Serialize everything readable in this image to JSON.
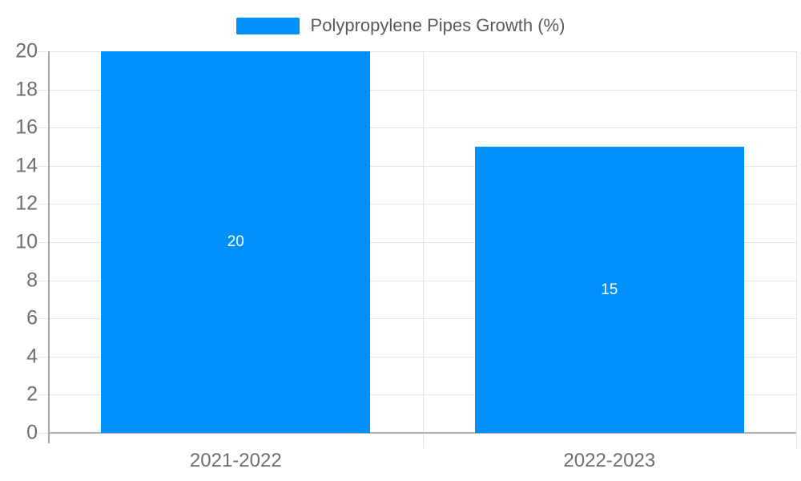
{
  "legend": {
    "label": "Polypropylene Pipes Growth (%)"
  },
  "chart_data": {
    "type": "bar",
    "title": "Polypropylene Pipes Growth (%)",
    "categories": [
      "2021-2022",
      "2022-2023"
    ],
    "series": [
      {
        "name": "Polypropylene Pipes Growth (%)",
        "values": [
          20,
          15
        ]
      }
    ],
    "data_labels": [
      "20",
      "15"
    ],
    "xlabel": "",
    "ylabel": "",
    "ylim": [
      0,
      20
    ],
    "yticks": [
      0,
      2,
      4,
      6,
      8,
      10,
      12,
      14,
      16,
      18,
      20
    ],
    "bar_width_fraction": 0.72,
    "grid": true,
    "legend_position": "top",
    "colors": {
      "bar": "#008FFB",
      "grid": "#e4e4e4",
      "axis_x": "#b1b1b1",
      "axis_y": "#a6a6a6",
      "tick_label": "#6e6e6e",
      "legend_text": "#58595b",
      "data_label": "#ffffff",
      "background": "#ffffff"
    }
  }
}
